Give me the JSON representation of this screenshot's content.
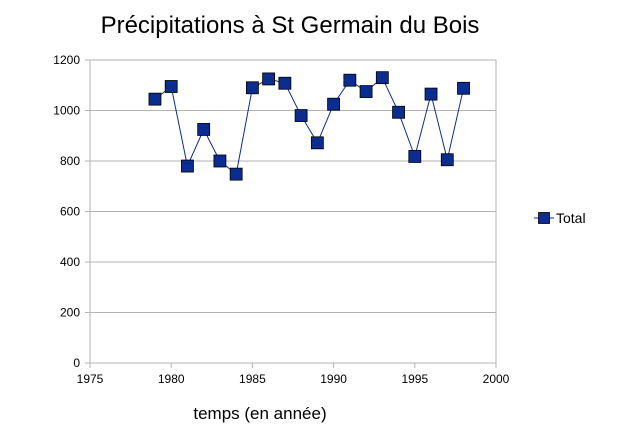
{
  "chart_data": {
    "type": "line",
    "title": "Précipitations à St Germain du Bois",
    "xlabel": "temps (en année)",
    "ylabel": "",
    "xlim": [
      1975,
      2000
    ],
    "ylim": [
      0,
      1200
    ],
    "x_ticks": [
      1975,
      1980,
      1985,
      1990,
      1995,
      2000
    ],
    "y_ticks": [
      0,
      200,
      400,
      600,
      800,
      1000,
      1200
    ],
    "grid": "horizontal",
    "legend_position": "right",
    "series": [
      {
        "name": "Total",
        "color": "#0a2d8f",
        "marker": "square",
        "x": [
          1979,
          1980,
          1981,
          1982,
          1983,
          1984,
          1985,
          1986,
          1987,
          1988,
          1989,
          1990,
          1991,
          1992,
          1993,
          1994,
          1995,
          1996,
          1997,
          1998
        ],
        "y": [
          1045,
          1095,
          780,
          925,
          800,
          748,
          1090,
          1125,
          1108,
          980,
          872,
          1025,
          1120,
          1075,
          1130,
          993,
          818,
          1065,
          805,
          1088
        ]
      }
    ]
  }
}
